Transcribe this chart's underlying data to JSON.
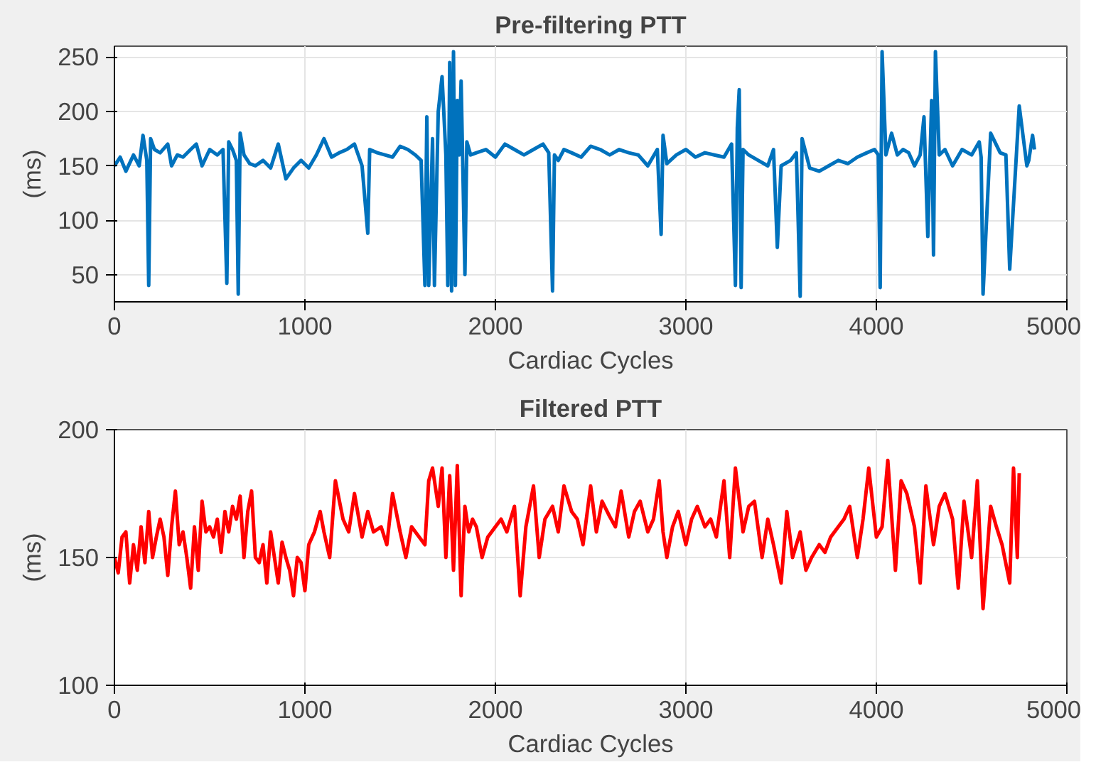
{
  "chart_data": [
    {
      "type": "line",
      "title": "Pre-filtering PTT",
      "xlabel": "Cardiac Cycles",
      "ylabel": "(ms)",
      "xlim": [
        0,
        5000
      ],
      "ylim": [
        25,
        260
      ],
      "xticks": [
        0,
        1000,
        2000,
        3000,
        4000,
        5000
      ],
      "yticks": [
        50,
        100,
        150,
        200,
        250
      ],
      "grid": true,
      "series": [
        {
          "color": "#0072bd",
          "x": [
            0,
            30,
            60,
            100,
            130,
            150,
            170,
            180,
            190,
            210,
            240,
            280,
            300,
            330,
            360,
            400,
            430,
            460,
            500,
            540,
            570,
            590,
            600,
            620,
            640,
            650,
            660,
            680,
            710,
            740,
            780,
            820,
            860,
            900,
            940,
            980,
            1020,
            1060,
            1100,
            1140,
            1180,
            1220,
            1260,
            1300,
            1330,
            1340,
            1380,
            1420,
            1460,
            1500,
            1540,
            1580,
            1610,
            1630,
            1640,
            1650,
            1670,
            1680,
            1700,
            1720,
            1740,
            1750,
            1760,
            1770,
            1780,
            1790,
            1800,
            1810,
            1820,
            1840,
            1850,
            1870,
            1900,
            1950,
            2000,
            2050,
            2100,
            2150,
            2200,
            2250,
            2280,
            2300,
            2310,
            2330,
            2360,
            2400,
            2450,
            2500,
            2550,
            2600,
            2650,
            2700,
            2750,
            2800,
            2850,
            2870,
            2880,
            2900,
            2950,
            3000,
            3050,
            3100,
            3150,
            3200,
            3240,
            3260,
            3270,
            3280,
            3290,
            3300,
            3330,
            3380,
            3430,
            3460,
            3480,
            3500,
            3550,
            3580,
            3600,
            3610,
            3650,
            3700,
            3750,
            3800,
            3850,
            3900,
            3950,
            3990,
            4010,
            4020,
            4030,
            4050,
            4080,
            4110,
            4140,
            4170,
            4200,
            4230,
            4250,
            4270,
            4290,
            4300,
            4310,
            4330,
            4360,
            4400,
            4450,
            4500,
            4540,
            4550,
            4560,
            4600,
            4650,
            4680,
            4700,
            4750,
            4790,
            4800,
            4820,
            4830
          ],
          "values": [
            150,
            158,
            145,
            160,
            150,
            178,
            155,
            40,
            175,
            165,
            162,
            170,
            150,
            160,
            158,
            165,
            170,
            150,
            165,
            160,
            165,
            42,
            172,
            165,
            155,
            32,
            180,
            160,
            152,
            150,
            155,
            148,
            170,
            138,
            148,
            155,
            148,
            160,
            175,
            158,
            162,
            165,
            170,
            150,
            88,
            165,
            162,
            160,
            158,
            168,
            165,
            160,
            155,
            40,
            195,
            40,
            175,
            40,
            200,
            232,
            160,
            40,
            245,
            35,
            255,
            40,
            210,
            160,
            228,
            50,
            172,
            160,
            162,
            165,
            158,
            170,
            165,
            160,
            165,
            170,
            162,
            35,
            160,
            155,
            165,
            162,
            158,
            168,
            165,
            160,
            165,
            162,
            160,
            150,
            165,
            87,
            178,
            152,
            160,
            165,
            158,
            162,
            160,
            158,
            170,
            40,
            185,
            220,
            38,
            165,
            160,
            155,
            150,
            165,
            75,
            150,
            155,
            162,
            30,
            175,
            148,
            145,
            150,
            155,
            152,
            158,
            162,
            165,
            160,
            38,
            255,
            160,
            180,
            160,
            165,
            162,
            150,
            160,
            195,
            85,
            210,
            68,
            255,
            160,
            165,
            150,
            165,
            160,
            172,
            158,
            32,
            180,
            162,
            160,
            55,
            205,
            150,
            155,
            178,
            165
          ]
        }
      ]
    },
    {
      "type": "line",
      "title": "Filtered PTT",
      "xlabel": "Cardiac Cycles",
      "ylabel": "(ms)",
      "xlim": [
        0,
        5000
      ],
      "ylim": [
        100,
        200
      ],
      "xticks": [
        0,
        1000,
        2000,
        3000,
        4000,
        5000
      ],
      "yticks": [
        100,
        150,
        200
      ],
      "grid": true,
      "series": [
        {
          "color": "#ff0000",
          "x": [
            0,
            20,
            40,
            60,
            80,
            100,
            120,
            140,
            160,
            180,
            200,
            220,
            240,
            260,
            280,
            300,
            320,
            340,
            360,
            380,
            400,
            420,
            440,
            460,
            480,
            500,
            520,
            540,
            560,
            580,
            600,
            620,
            640,
            660,
            680,
            700,
            720,
            740,
            760,
            780,
            800,
            820,
            840,
            860,
            880,
            900,
            920,
            940,
            960,
            980,
            1000,
            1020,
            1050,
            1080,
            1100,
            1130,
            1160,
            1200,
            1230,
            1260,
            1300,
            1330,
            1360,
            1400,
            1430,
            1460,
            1500,
            1530,
            1560,
            1600,
            1630,
            1650,
            1670,
            1700,
            1720,
            1740,
            1760,
            1780,
            1800,
            1820,
            1840,
            1860,
            1880,
            1900,
            1930,
            1960,
            2000,
            2030,
            2060,
            2100,
            2130,
            2160,
            2200,
            2230,
            2260,
            2300,
            2330,
            2360,
            2400,
            2430,
            2460,
            2500,
            2530,
            2560,
            2600,
            2630,
            2660,
            2700,
            2730,
            2760,
            2800,
            2830,
            2860,
            2880,
            2900,
            2930,
            2960,
            3000,
            3030,
            3060,
            3100,
            3130,
            3160,
            3200,
            3230,
            3260,
            3300,
            3330,
            3360,
            3400,
            3430,
            3460,
            3500,
            3530,
            3560,
            3600,
            3630,
            3660,
            3700,
            3730,
            3760,
            3800,
            3830,
            3860,
            3900,
            3930,
            3960,
            4000,
            4030,
            4060,
            4100,
            4130,
            4160,
            4200,
            4230,
            4260,
            4300,
            4330,
            4360,
            4400,
            4430,
            4460,
            4500,
            4530,
            4560,
            4600,
            4630,
            4660,
            4700,
            4720,
            4740,
            4750
          ],
          "values": [
            150,
            144,
            158,
            160,
            140,
            155,
            145,
            162,
            148,
            168,
            150,
            158,
            165,
            158,
            143,
            162,
            176,
            155,
            160,
            150,
            138,
            162,
            145,
            172,
            160,
            162,
            158,
            165,
            152,
            168,
            160,
            170,
            165,
            174,
            150,
            168,
            176,
            150,
            148,
            155,
            140,
            160,
            150,
            140,
            156,
            150,
            145,
            135,
            150,
            148,
            137,
            155,
            160,
            168,
            160,
            150,
            180,
            165,
            160,
            175,
            158,
            168,
            160,
            162,
            155,
            175,
            160,
            150,
            162,
            158,
            155,
            180,
            185,
            170,
            185,
            150,
            182,
            145,
            186,
            135,
            170,
            160,
            165,
            162,
            150,
            158,
            162,
            165,
            160,
            170,
            135,
            162,
            178,
            150,
            165,
            170,
            160,
            178,
            168,
            165,
            155,
            178,
            160,
            172,
            166,
            162,
            176,
            158,
            168,
            172,
            160,
            165,
            180,
            160,
            150,
            162,
            168,
            155,
            165,
            170,
            162,
            165,
            158,
            180,
            150,
            185,
            160,
            170,
            172,
            150,
            165,
            155,
            140,
            168,
            150,
            160,
            145,
            150,
            155,
            152,
            158,
            162,
            165,
            170,
            150,
            165,
            185,
            158,
            162,
            188,
            145,
            180,
            175,
            162,
            140,
            178,
            155,
            170,
            175,
            165,
            138,
            172,
            150,
            180,
            130,
            170,
            162,
            155,
            140,
            185,
            150,
            183
          ]
        }
      ]
    }
  ]
}
